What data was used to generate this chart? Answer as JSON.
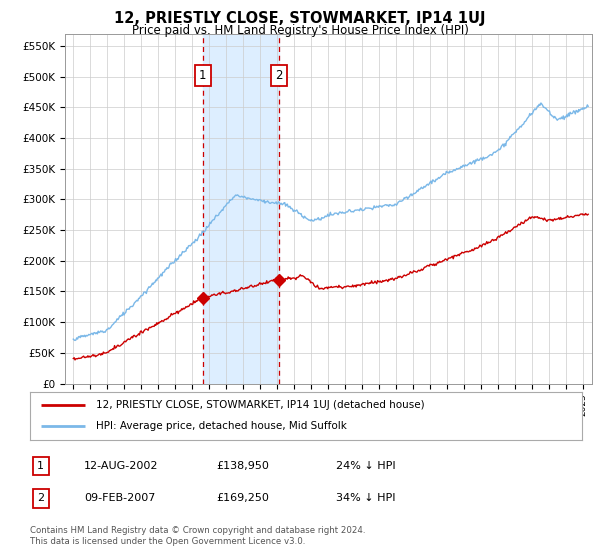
{
  "title": "12, PRIESTLY CLOSE, STOWMARKET, IP14 1UJ",
  "subtitle": "Price paid vs. HM Land Registry's House Price Index (HPI)",
  "ylabel_ticks": [
    "£0",
    "£50K",
    "£100K",
    "£150K",
    "£200K",
    "£250K",
    "£300K",
    "£350K",
    "£400K",
    "£450K",
    "£500K",
    "£550K"
  ],
  "ylim": [
    0,
    570000
  ],
  "xlim_start": 1994.5,
  "xlim_end": 2025.5,
  "hpi_color": "#7bb8e8",
  "price_color": "#cc0000",
  "sale1_date": 2002.614,
  "sale1_price": 138950,
  "sale1_label": "1",
  "sale2_date": 2007.117,
  "sale2_price": 169250,
  "sale2_label": "2",
  "highlight_color": "#ddeeff",
  "vline_color": "#cc0000",
  "legend_line1": "12, PRIESTLY CLOSE, STOWMARKET, IP14 1UJ (detached house)",
  "legend_line2": "HPI: Average price, detached house, Mid Suffolk",
  "table_row1": [
    "1",
    "12-AUG-2002",
    "£138,950",
    "24% ↓ HPI"
  ],
  "table_row2": [
    "2",
    "09-FEB-2007",
    "£169,250",
    "34% ↓ HPI"
  ],
  "footnote": "Contains HM Land Registry data © Crown copyright and database right 2024.\nThis data is licensed under the Open Government Licence v3.0.",
  "background_color": "#ffffff",
  "grid_color": "#cccccc"
}
